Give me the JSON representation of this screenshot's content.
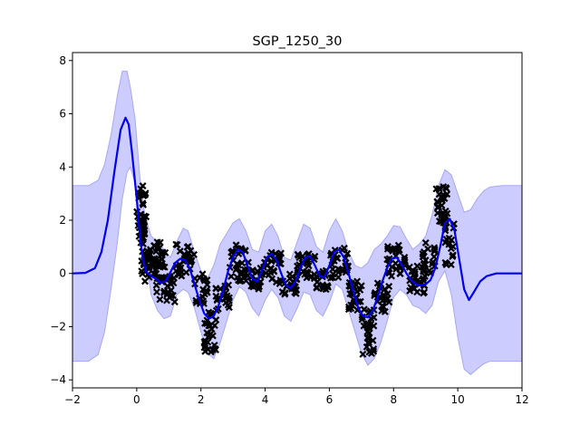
{
  "chart_data": {
    "type": "line",
    "title": "SGP_1250_30",
    "xlabel": "",
    "ylabel": "",
    "xlim": [
      -2,
      12
    ],
    "ylim": [
      -4.3,
      8.3
    ],
    "xticks": [
      "−2",
      "0",
      "2",
      "4",
      "6",
      "8",
      "10",
      "12"
    ],
    "xtick_values": [
      -2,
      0,
      2,
      4,
      6,
      8,
      10,
      12
    ],
    "yticks": [
      "−4",
      "−2",
      "0",
      "2",
      "4",
      "6",
      "8"
    ],
    "ytick_values": [
      -4,
      -2,
      0,
      2,
      4,
      6,
      8
    ],
    "grid": false,
    "legend": "none",
    "colors": {
      "mean": "#0000ee",
      "band_fill": "#ccccff",
      "band_edge": "#a8a8f5",
      "points": "#000000"
    },
    "series": [
      {
        "kind": "mean",
        "x": [
          -2.0,
          -1.6,
          -1.3,
          -1.1,
          -0.9,
          -0.7,
          -0.5,
          -0.35,
          -0.25,
          -0.15,
          0.0,
          0.1,
          0.2,
          0.3,
          0.45,
          0.6,
          0.75,
          0.9,
          1.05,
          1.2,
          1.35,
          1.5,
          1.65,
          1.8,
          1.95,
          2.1,
          2.25,
          2.4,
          2.55,
          2.7,
          2.85,
          3.0,
          3.15,
          3.3,
          3.45,
          3.6,
          3.75,
          3.9,
          4.05,
          4.2,
          4.35,
          4.5,
          4.65,
          4.8,
          4.95,
          5.1,
          5.25,
          5.4,
          5.55,
          5.7,
          5.85,
          6.0,
          6.15,
          6.3,
          6.45,
          6.6,
          6.75,
          6.9,
          7.05,
          7.2,
          7.35,
          7.5,
          7.65,
          7.8,
          7.95,
          8.1,
          8.25,
          8.4,
          8.55,
          8.7,
          8.85,
          9.0,
          9.15,
          9.3,
          9.45,
          9.6,
          9.75,
          9.9,
          10.05,
          10.2,
          10.35,
          10.5,
          10.7,
          10.9,
          11.2,
          11.6,
          12.0
        ],
        "y": [
          0.0,
          0.02,
          0.2,
          0.8,
          2.0,
          3.8,
          5.4,
          5.85,
          5.6,
          4.6,
          2.8,
          1.4,
          0.5,
          0.05,
          -0.1,
          -0.2,
          -0.35,
          -0.3,
          0.05,
          0.4,
          0.55,
          0.5,
          0.2,
          -0.4,
          -1.0,
          -1.5,
          -1.7,
          -1.6,
          -1.2,
          -0.6,
          0.1,
          0.6,
          0.9,
          0.8,
          0.3,
          -0.2,
          -0.3,
          0.1,
          0.6,
          0.75,
          0.5,
          0.0,
          -0.45,
          -0.55,
          -0.3,
          0.2,
          0.6,
          0.65,
          0.3,
          -0.1,
          -0.15,
          0.3,
          0.8,
          0.9,
          0.6,
          0.0,
          -0.7,
          -1.3,
          -1.6,
          -1.65,
          -1.4,
          -0.9,
          -0.3,
          0.2,
          0.55,
          0.6,
          0.35,
          0.0,
          -0.25,
          -0.4,
          -0.45,
          -0.4,
          -0.25,
          0.2,
          1.0,
          1.9,
          2.05,
          1.6,
          0.5,
          -0.6,
          -1.0,
          -0.7,
          -0.3,
          -0.1,
          0.0,
          0.0,
          0.0
        ]
      },
      {
        "kind": "upper",
        "x": [
          -2.0,
          -1.5,
          -1.2,
          -1.0,
          -0.8,
          -0.6,
          -0.45,
          -0.3,
          -0.2,
          -0.05,
          0.1,
          0.25,
          0.45,
          0.65,
          0.85,
          1.05,
          1.25,
          1.45,
          1.6,
          1.8,
          2.0,
          2.2,
          2.4,
          2.6,
          2.8,
          3.0,
          3.2,
          3.4,
          3.6,
          3.8,
          4.0,
          4.2,
          4.4,
          4.6,
          4.8,
          5.0,
          5.2,
          5.4,
          5.6,
          5.8,
          6.0,
          6.2,
          6.4,
          6.6,
          6.8,
          7.0,
          7.2,
          7.4,
          7.6,
          7.8,
          8.0,
          8.2,
          8.4,
          8.6,
          8.8,
          9.0,
          9.2,
          9.4,
          9.6,
          9.8,
          10.0,
          10.2,
          10.4,
          10.6,
          10.8,
          11.0,
          11.4,
          12.0
        ],
        "y": [
          3.3,
          3.3,
          3.5,
          4.1,
          5.2,
          6.7,
          7.6,
          7.6,
          7.0,
          5.8,
          3.6,
          2.2,
          1.4,
          1.2,
          0.9,
          0.6,
          1.2,
          1.7,
          1.6,
          0.8,
          0.1,
          -0.2,
          0.3,
          1.1,
          1.5,
          1.9,
          2.05,
          1.6,
          0.9,
          0.8,
          1.6,
          1.85,
          1.4,
          0.6,
          0.5,
          1.2,
          1.85,
          1.7,
          1.0,
          0.8,
          1.6,
          2.05,
          1.6,
          0.8,
          0.3,
          0.2,
          0.4,
          0.9,
          1.1,
          1.4,
          1.8,
          1.75,
          1.3,
          0.9,
          1.1,
          1.4,
          2.2,
          3.3,
          3.9,
          3.7,
          3.0,
          2.3,
          2.4,
          2.8,
          3.1,
          3.25,
          3.3,
          3.3
        ]
      },
      {
        "kind": "lower",
        "x": [
          -2.0,
          -1.5,
          -1.2,
          -1.0,
          -0.8,
          -0.6,
          -0.45,
          -0.3,
          -0.2,
          -0.05,
          0.1,
          0.25,
          0.45,
          0.65,
          0.85,
          1.05,
          1.25,
          1.45,
          1.6,
          1.8,
          2.0,
          2.2,
          2.4,
          2.6,
          2.8,
          3.0,
          3.2,
          3.4,
          3.6,
          3.8,
          4.0,
          4.2,
          4.4,
          4.6,
          4.8,
          5.0,
          5.2,
          5.4,
          5.6,
          5.8,
          6.0,
          6.2,
          6.4,
          6.6,
          6.8,
          7.0,
          7.2,
          7.4,
          7.6,
          7.8,
          8.0,
          8.2,
          8.4,
          8.6,
          8.8,
          9.0,
          9.2,
          9.4,
          9.6,
          9.8,
          10.0,
          10.2,
          10.4,
          10.6,
          10.8,
          11.0,
          11.4,
          12.0
        ],
        "y": [
          -3.3,
          -3.3,
          -3.05,
          -2.2,
          -0.6,
          1.2,
          2.8,
          3.8,
          4.0,
          3.4,
          2.0,
          0.8,
          -0.8,
          -1.4,
          -1.7,
          -1.6,
          -0.8,
          -0.6,
          -0.7,
          -1.3,
          -2.2,
          -3.0,
          -3.2,
          -2.6,
          -1.8,
          -1.0,
          -0.5,
          -0.7,
          -1.3,
          -1.6,
          -1.0,
          -0.6,
          -0.9,
          -1.6,
          -1.8,
          -1.3,
          -0.7,
          -0.8,
          -1.4,
          -1.6,
          -1.1,
          -0.4,
          -0.6,
          -1.4,
          -2.2,
          -3.0,
          -3.45,
          -3.2,
          -2.6,
          -1.8,
          -0.9,
          -0.6,
          -0.8,
          -1.2,
          -1.3,
          -1.5,
          -1.2,
          -0.3,
          0.1,
          -0.8,
          -2.4,
          -3.6,
          -3.8,
          -3.6,
          -3.4,
          -3.3,
          -3.3,
          -3.3
        ]
      }
    ],
    "scatter_clusters": [
      {
        "x": [
          0.0,
          0.3
        ],
        "y_center": 2.2,
        "y_spread": 1.1,
        "n": 40
      },
      {
        "x": [
          0.15,
          0.5
        ],
        "y_center": 0.3,
        "y_spread": 0.6,
        "n": 30
      },
      {
        "x": [
          0.5,
          0.9
        ],
        "y_center": 0.5,
        "y_spread": 0.7,
        "n": 30
      },
      {
        "x": [
          0.6,
          1.2
        ],
        "y_center": -0.6,
        "y_spread": 0.5,
        "n": 30
      },
      {
        "x": [
          1.2,
          1.8
        ],
        "y_center": 0.5,
        "y_spread": 0.6,
        "n": 30
      },
      {
        "x": [
          1.8,
          2.2
        ],
        "y_center": -0.6,
        "y_spread": 0.6,
        "n": 20
      },
      {
        "x": [
          2.1,
          2.5
        ],
        "y_center": -2.2,
        "y_spread": 0.8,
        "n": 30
      },
      {
        "x": [
          2.4,
          2.9
        ],
        "y_center": -0.9,
        "y_spread": 0.5,
        "n": 25
      },
      {
        "x": [
          2.9,
          3.5
        ],
        "y_center": 0.4,
        "y_spread": 0.7,
        "n": 35
      },
      {
        "x": [
          3.5,
          3.9
        ],
        "y_center": -0.2,
        "y_spread": 0.4,
        "n": 20
      },
      {
        "x": [
          3.9,
          4.5
        ],
        "y_center": 0.2,
        "y_spread": 0.6,
        "n": 30
      },
      {
        "x": [
          4.5,
          5.0
        ],
        "y_center": -0.4,
        "y_spread": 0.4,
        "n": 25
      },
      {
        "x": [
          5.0,
          5.6
        ],
        "y_center": 0.3,
        "y_spread": 0.5,
        "n": 30
      },
      {
        "x": [
          5.6,
          6.0
        ],
        "y_center": -0.2,
        "y_spread": 0.4,
        "n": 20
      },
      {
        "x": [
          6.0,
          6.6
        ],
        "y_center": 0.4,
        "y_spread": 0.6,
        "n": 30
      },
      {
        "x": [
          6.6,
          7.0
        ],
        "y_center": -0.8,
        "y_spread": 0.6,
        "n": 25
      },
      {
        "x": [
          7.0,
          7.4
        ],
        "y_center": -2.2,
        "y_spread": 0.9,
        "n": 30
      },
      {
        "x": [
          7.4,
          7.9
        ],
        "y_center": -0.9,
        "y_spread": 0.6,
        "n": 25
      },
      {
        "x": [
          7.8,
          8.4
        ],
        "y_center": 0.5,
        "y_spread": 0.6,
        "n": 30
      },
      {
        "x": [
          8.4,
          9.0
        ],
        "y_center": -0.2,
        "y_spread": 0.6,
        "n": 30
      },
      {
        "x": [
          8.9,
          9.3
        ],
        "y_center": 0.6,
        "y_spread": 0.6,
        "n": 20
      },
      {
        "x": [
          9.3,
          9.7
        ],
        "y_center": 2.6,
        "y_spread": 0.7,
        "n": 30
      },
      {
        "x": [
          9.6,
          9.9
        ],
        "y_center": 1.2,
        "y_spread": 0.9,
        "n": 20
      }
    ]
  }
}
